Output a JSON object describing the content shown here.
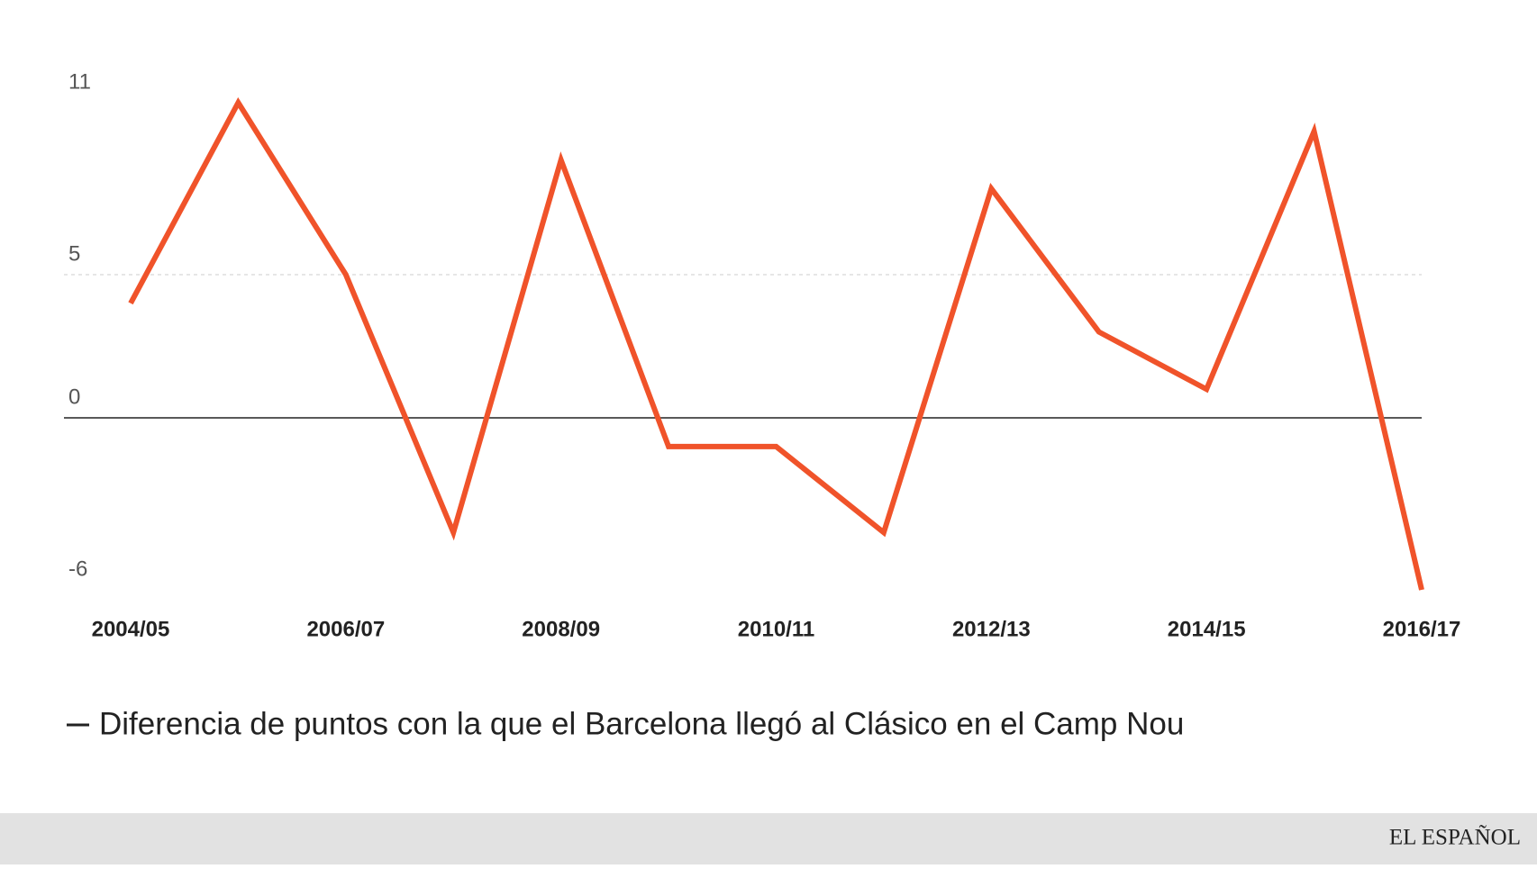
{
  "chart_data": {
    "type": "line",
    "categories": [
      "2004/05",
      null,
      "2006/07",
      null,
      "2008/09",
      null,
      "2010/11",
      null,
      "2012/13",
      null,
      "2014/15",
      null,
      "2016/17"
    ],
    "series": [
      {
        "name": "Diferencia de puntos con la que el Barcelona llegó al Clásico en el Camp Nou",
        "color": "#f0532a",
        "values": [
          4,
          11,
          5,
          -4,
          9,
          -1,
          -1,
          -4,
          8,
          3,
          1,
          10,
          -6
        ]
      }
    ],
    "ylim": [
      -6,
      11
    ],
    "yticks": [
      11,
      5,
      0,
      -6
    ],
    "grid": true
  },
  "footer": "EL ESPAÑOL"
}
